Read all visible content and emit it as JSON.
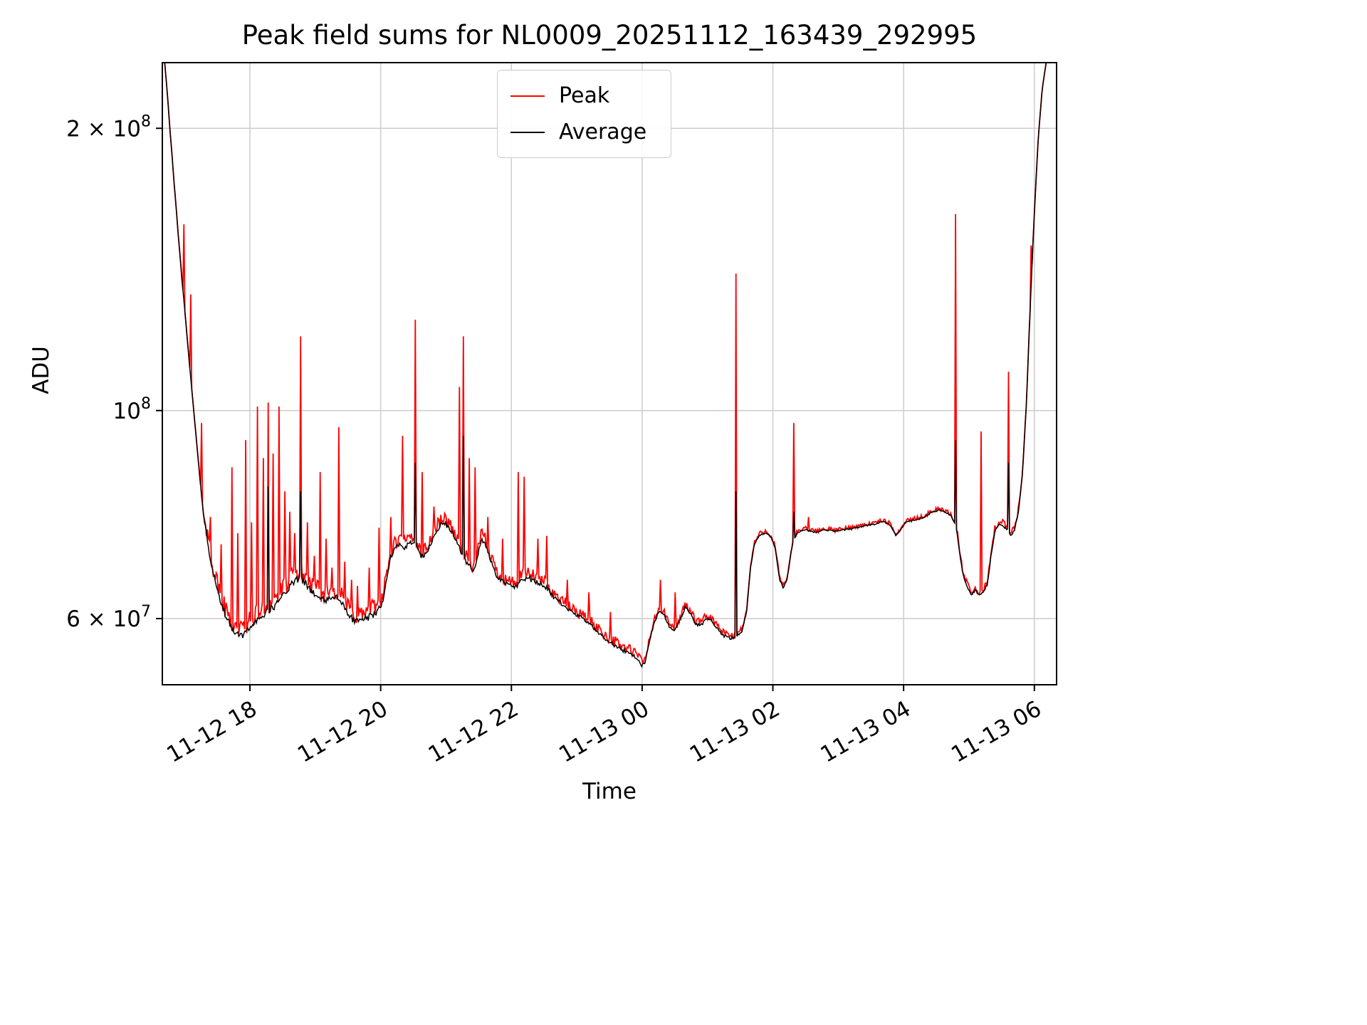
{
  "chart_data": {
    "type": "line",
    "title": "Peak field sums for NL0009_20251112_163439_292995",
    "xlabel": "Time",
    "ylabel": "ADU",
    "yscale": "log",
    "grid": true,
    "legend_position": "upper center",
    "x_unit": "hours since 2025-11-12 00:00",
    "xlim": [
      16.66,
      30.34
    ],
    "ylim": [
      51000000.0,
      235000000.0
    ],
    "xticks": [
      {
        "value": 18,
        "label": "11-12 18"
      },
      {
        "value": 20,
        "label": "11-12 20"
      },
      {
        "value": 22,
        "label": "11-12 22"
      },
      {
        "value": 24,
        "label": "11-13 00"
      },
      {
        "value": 26,
        "label": "11-13 02"
      },
      {
        "value": 28,
        "label": "11-13 04"
      },
      {
        "value": 30,
        "label": "11-13 06"
      }
    ],
    "yticks": [
      {
        "value": 200000000.0,
        "base": "2 × 10",
        "exp": "8"
      },
      {
        "value": 100000000.0,
        "base": "10",
        "exp": "8"
      },
      {
        "value": 60000000.0,
        "base": "6 × 10",
        "exp": "7"
      }
    ],
    "series": [
      {
        "name": "Peak",
        "color": "#ff0000",
        "derived": "average baseline plus noise and spikes",
        "noise_regions": [
          [
            17.3,
            20.0,
            0.05
          ],
          [
            20.0,
            22.6,
            0.035
          ],
          [
            22.6,
            24.05,
            0.028
          ],
          [
            24.05,
            25.55,
            0.02
          ],
          [
            25.55,
            26.4,
            0.012
          ],
          [
            26.4,
            28.75,
            0.01
          ],
          [
            28.82,
            29.78,
            0.018
          ]
        ],
        "spikes": [
          [
            16.99,
            158000000.0
          ],
          [
            17.1,
            133000000.0
          ],
          [
            17.26,
            97000000.0
          ],
          [
            17.4,
            77000000.0
          ],
          [
            17.56,
            72000000.0
          ],
          [
            17.72,
            87000000.0
          ],
          [
            17.81,
            74000000.0
          ],
          [
            17.94,
            93000000.0
          ],
          [
            18.02,
            76000000.0
          ],
          [
            18.11,
            101000000.0
          ],
          [
            18.2,
            89000000.0
          ],
          [
            18.28,
            102000000.0
          ],
          [
            18.36,
            90000000.0
          ],
          [
            18.44,
            101000000.0
          ],
          [
            18.53,
            82000000.0
          ],
          [
            18.61,
            78000000.0
          ],
          [
            18.68,
            74000000.0
          ],
          [
            18.77,
            120000000.0
          ],
          [
            18.88,
            76000000.0
          ],
          [
            18.99,
            70000000.0
          ],
          [
            19.07,
            86000000.0
          ],
          [
            19.16,
            73000000.0
          ],
          [
            19.25,
            68000000.0
          ],
          [
            19.36,
            96000000.0
          ],
          [
            19.45,
            69000000.0
          ],
          [
            19.56,
            66000000.0
          ],
          [
            19.65,
            65000000.0
          ],
          [
            19.82,
            68000000.0
          ],
          [
            19.98,
            75000000.0
          ],
          [
            20.15,
            77000000.0
          ],
          [
            20.34,
            94000000.0
          ],
          [
            20.53,
            125000000.0
          ],
          [
            20.64,
            86000000.0
          ],
          [
            20.81,
            79000000.0
          ],
          [
            21.2,
            106000000.0
          ],
          [
            21.26,
            120000000.0
          ],
          [
            21.36,
            89000000.0
          ],
          [
            21.44,
            87000000.0
          ],
          [
            21.64,
            77000000.0
          ],
          [
            21.86,
            73000000.0
          ],
          [
            22.11,
            86000000.0
          ],
          [
            22.2,
            85000000.0
          ],
          [
            22.41,
            73000000.0
          ],
          [
            22.54,
            73500000.0
          ],
          [
            22.85,
            66000000.0
          ],
          [
            23.18,
            64000000.0
          ],
          [
            23.51,
            61000000.0
          ],
          [
            24.28,
            66000000.0
          ],
          [
            24.5,
            64000000.0
          ],
          [
            24.77,
            61000000.0
          ],
          [
            25.43,
            140000000.0
          ],
          [
            26.32,
            97000000.0
          ],
          [
            26.55,
            77000000.0
          ],
          [
            28.8,
            162000000.0
          ],
          [
            29.19,
            95000000.0
          ],
          [
            29.6,
            110000000.0
          ],
          [
            29.95,
            150000000.0
          ]
        ]
      },
      {
        "name": "Average",
        "color": "#000000",
        "spikes": [
          [
            18.28,
            83000000.0
          ],
          [
            18.77,
            82000000.0
          ],
          [
            20.53,
            88000000.0
          ],
          [
            21.26,
            94000000.0
          ],
          [
            25.43,
            82000000.0
          ],
          [
            26.32,
            78000000.0
          ],
          [
            28.8,
            93000000.0
          ],
          [
            29.6,
            88000000.0
          ]
        ],
        "points": [
          [
            16.66,
            250000000.0
          ],
          [
            16.72,
            225000000.0
          ],
          [
            16.78,
            198000000.0
          ],
          [
            16.84,
            175000000.0
          ],
          [
            16.9,
            155000000.0
          ],
          [
            16.96,
            138000000.0
          ],
          [
            17.02,
            124000000.0
          ],
          [
            17.08,
            111000000.0
          ],
          [
            17.14,
            100000000.0
          ],
          [
            17.2,
            90000000.0
          ],
          [
            17.26,
            81000000.0
          ],
          [
            17.32,
            74000000.0
          ],
          [
            17.4,
            68500000.0
          ],
          [
            17.48,
            64500000.0
          ],
          [
            17.56,
            61500000.0
          ],
          [
            17.64,
            59500000.0
          ],
          [
            17.72,
            58200000.0
          ],
          [
            17.8,
            57200000.0
          ],
          [
            17.88,
            57000000.0
          ],
          [
            17.96,
            57600000.0
          ],
          [
            18.04,
            58800000.0
          ],
          [
            18.12,
            59400000.0
          ],
          [
            18.2,
            60000000.0
          ],
          [
            18.28,
            60600000.0
          ],
          [
            18.36,
            61200000.0
          ],
          [
            18.44,
            62000000.0
          ],
          [
            18.52,
            63200000.0
          ],
          [
            18.6,
            64200000.0
          ],
          [
            18.68,
            65200000.0
          ],
          [
            18.76,
            65600000.0
          ],
          [
            18.84,
            65000000.0
          ],
          [
            18.92,
            64000000.0
          ],
          [
            19.0,
            63000000.0
          ],
          [
            19.08,
            62400000.0
          ],
          [
            19.16,
            62000000.0
          ],
          [
            19.24,
            62800000.0
          ],
          [
            19.32,
            62800000.0
          ],
          [
            19.4,
            61800000.0
          ],
          [
            19.48,
            60400000.0
          ],
          [
            19.56,
            59500000.0
          ],
          [
            19.64,
            59000000.0
          ],
          [
            19.72,
            59200000.0
          ],
          [
            19.8,
            59600000.0
          ],
          [
            19.88,
            60000000.0
          ],
          [
            19.96,
            60600000.0
          ],
          [
            20.04,
            62500000.0
          ],
          [
            20.1,
            66500000.0
          ],
          [
            20.16,
            69500000.0
          ],
          [
            20.22,
            71000000.0
          ],
          [
            20.3,
            71500000.0
          ],
          [
            20.38,
            71000000.0
          ],
          [
            20.46,
            72000000.0
          ],
          [
            20.54,
            71500000.0
          ],
          [
            20.62,
            69500000.0
          ],
          [
            20.7,
            70000000.0
          ],
          [
            20.78,
            72000000.0
          ],
          [
            20.86,
            74000000.0
          ],
          [
            20.94,
            75500000.0
          ],
          [
            21.02,
            75000000.0
          ],
          [
            21.1,
            73500000.0
          ],
          [
            21.18,
            71500000.0
          ],
          [
            21.26,
            69500000.0
          ],
          [
            21.34,
            68000000.0
          ],
          [
            21.42,
            67000000.0
          ],
          [
            21.48,
            69500000.0
          ],
          [
            21.54,
            72500000.0
          ],
          [
            21.6,
            71500000.0
          ],
          [
            21.68,
            69000000.0
          ],
          [
            21.76,
            66500000.0
          ],
          [
            21.84,
            65500000.0
          ],
          [
            21.92,
            65000000.0
          ],
          [
            22.0,
            64500000.0
          ],
          [
            22.08,
            64500000.0
          ],
          [
            22.16,
            65500000.0
          ],
          [
            22.24,
            66000000.0
          ],
          [
            22.32,
            65500000.0
          ],
          [
            22.42,
            65000000.0
          ],
          [
            22.52,
            64500000.0
          ],
          [
            22.64,
            63000000.0
          ],
          [
            22.76,
            62000000.0
          ],
          [
            22.88,
            61000000.0
          ],
          [
            23.0,
            60200000.0
          ],
          [
            23.12,
            59500000.0
          ],
          [
            23.24,
            58500000.0
          ],
          [
            23.36,
            57500000.0
          ],
          [
            23.48,
            56500000.0
          ],
          [
            23.6,
            55800000.0
          ],
          [
            23.72,
            55200000.0
          ],
          [
            23.84,
            54700000.0
          ],
          [
            23.94,
            54000000.0
          ],
          [
            24.0,
            53200000.0
          ],
          [
            24.04,
            53500000.0
          ],
          [
            24.1,
            56000000.0
          ],
          [
            24.18,
            59000000.0
          ],
          [
            24.26,
            61000000.0
          ],
          [
            24.34,
            60200000.0
          ],
          [
            24.42,
            58500000.0
          ],
          [
            24.5,
            58000000.0
          ],
          [
            24.58,
            59500000.0
          ],
          [
            24.66,
            61500000.0
          ],
          [
            24.74,
            60500000.0
          ],
          [
            24.82,
            59000000.0
          ],
          [
            24.9,
            58800000.0
          ],
          [
            24.98,
            59800000.0
          ],
          [
            25.06,
            59500000.0
          ],
          [
            25.14,
            58500000.0
          ],
          [
            25.22,
            57500000.0
          ],
          [
            25.32,
            57000000.0
          ],
          [
            25.42,
            57000000.0
          ],
          [
            25.52,
            57800000.0
          ],
          [
            25.6,
            61000000.0
          ],
          [
            25.66,
            68000000.0
          ],
          [
            25.72,
            72000000.0
          ],
          [
            25.8,
            73500000.0
          ],
          [
            25.9,
            74000000.0
          ],
          [
            25.98,
            73000000.0
          ],
          [
            26.04,
            71000000.0
          ],
          [
            26.1,
            66000000.0
          ],
          [
            26.16,
            64500000.0
          ],
          [
            26.22,
            66000000.0
          ],
          [
            26.3,
            72000000.0
          ],
          [
            26.38,
            74000000.0
          ],
          [
            26.5,
            74500000.0
          ],
          [
            26.65,
            74000000.0
          ],
          [
            26.8,
            74500000.0
          ],
          [
            26.95,
            74200000.0
          ],
          [
            27.1,
            74500000.0
          ],
          [
            27.25,
            74800000.0
          ],
          [
            27.4,
            75200000.0
          ],
          [
            27.55,
            75500000.0
          ],
          [
            27.68,
            76000000.0
          ],
          [
            27.78,
            75500000.0
          ],
          [
            27.88,
            73500000.0
          ],
          [
            27.96,
            74500000.0
          ],
          [
            28.04,
            76000000.0
          ],
          [
            28.14,
            76200000.0
          ],
          [
            28.24,
            76500000.0
          ],
          [
            28.34,
            77000000.0
          ],
          [
            28.44,
            77800000.0
          ],
          [
            28.54,
            78200000.0
          ],
          [
            28.64,
            77800000.0
          ],
          [
            28.72,
            77200000.0
          ],
          [
            28.8,
            75500000.0
          ],
          [
            28.86,
            70000000.0
          ],
          [
            28.92,
            66000000.0
          ],
          [
            28.98,
            64500000.0
          ],
          [
            29.04,
            63200000.0
          ],
          [
            29.1,
            64200000.0
          ],
          [
            29.16,
            63200000.0
          ],
          [
            29.22,
            64000000.0
          ],
          [
            29.28,
            65000000.0
          ],
          [
            29.34,
            70000000.0
          ],
          [
            29.4,
            74500000.0
          ],
          [
            29.46,
            75500000.0
          ],
          [
            29.52,
            75200000.0
          ],
          [
            29.58,
            74500000.0
          ],
          [
            29.64,
            73200000.0
          ],
          [
            29.7,
            74500000.0
          ],
          [
            29.76,
            78000000.0
          ],
          [
            29.82,
            86000000.0
          ],
          [
            29.88,
            102000000.0
          ],
          [
            29.94,
            130000000.0
          ],
          [
            30.0,
            162000000.0
          ],
          [
            30.06,
            195000000.0
          ],
          [
            30.12,
            220000000.0
          ],
          [
            30.2,
            240000000.0
          ],
          [
            30.34,
            250000000.0
          ]
        ]
      }
    ],
    "colors": {
      "grid": "#cccccc",
      "axis": "#000000",
      "background": "#ffffff"
    }
  }
}
